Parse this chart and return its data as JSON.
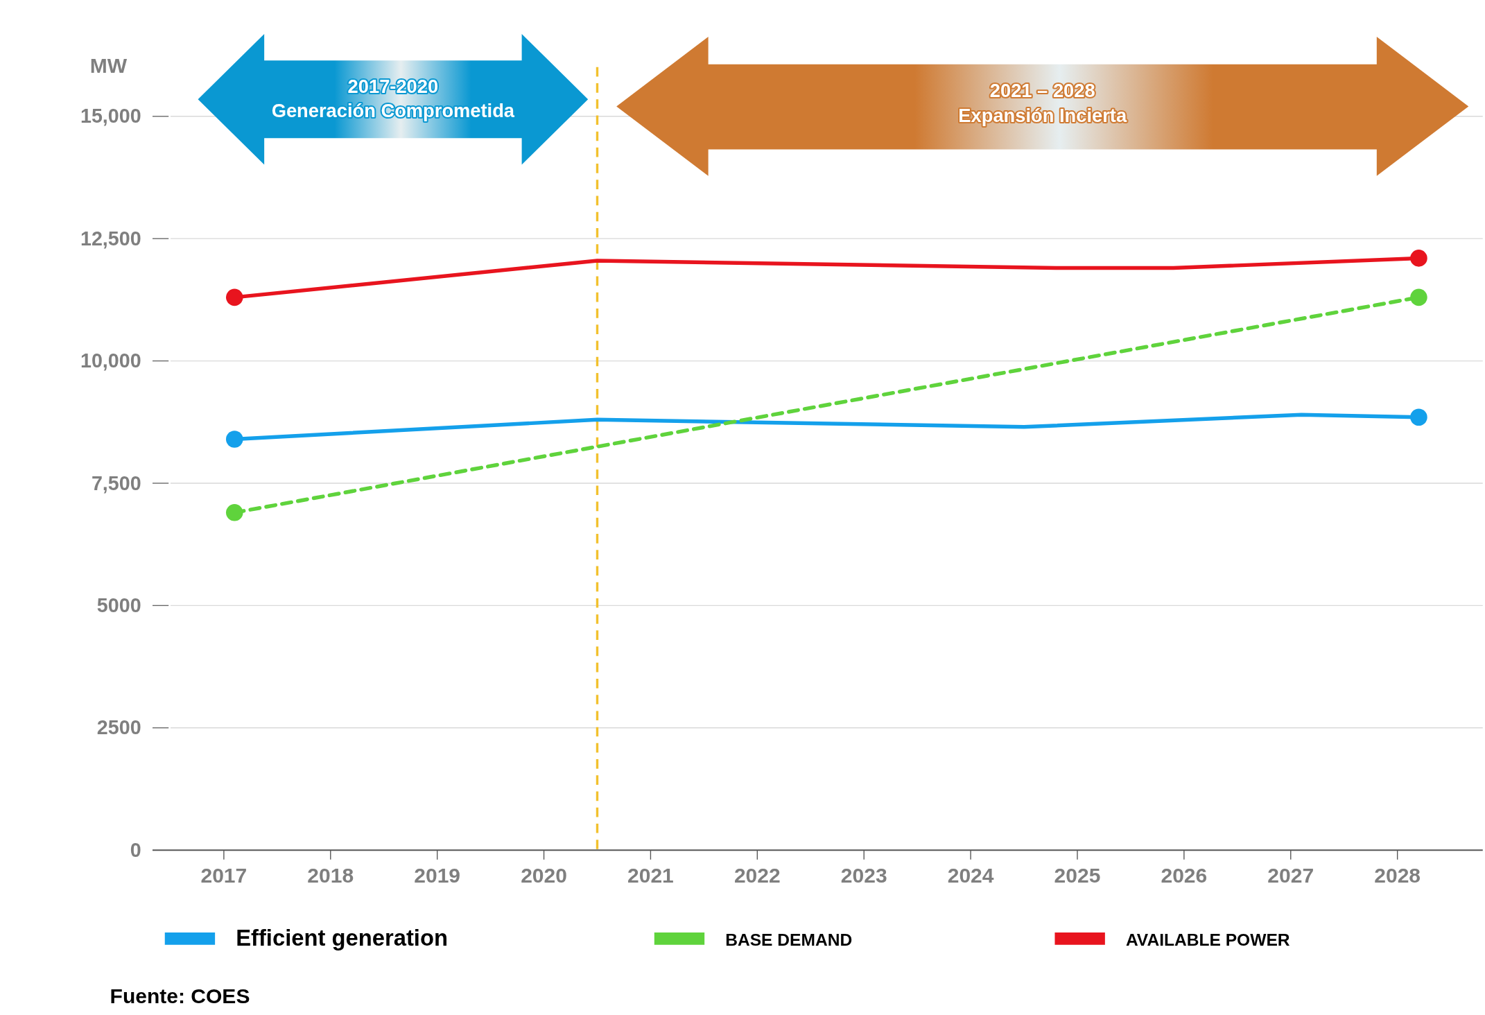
{
  "chart_data": {
    "type": "line",
    "ylabel": "MW",
    "xlim": [
      2016.5,
      2028.8
    ],
    "ylim": [
      0,
      15000
    ],
    "xticks": [
      2017,
      2018,
      2019,
      2020,
      2021,
      2022,
      2023,
      2024,
      2025,
      2026,
      2027,
      2028
    ],
    "yticks": [
      0,
      2500,
      5000,
      {
        "value": 7500,
        "label": "7,500"
      },
      {
        "value": 10000,
        "label": "10,000"
      },
      {
        "value": 12500,
        "label": "12,500"
      },
      {
        "value": 15000,
        "label": "15,000"
      }
    ],
    "grid": "y",
    "legend": "bottom",
    "series": [
      {
        "name": "Efficient generation",
        "color": "#14a0eb",
        "x": [
          2017.1,
          2020.5,
          2024.5,
          2027.1,
          2028.2
        ],
        "values": [
          8400,
          8800,
          8650,
          8900,
          8850
        ]
      },
      {
        "name": "BASE DEMAND",
        "color": "#5fd33c",
        "line_style": "dashed",
        "x": [
          2017.1,
          2028.2
        ],
        "values": [
          6900,
          11300
        ]
      },
      {
        "name": "AVAILABLE POWER",
        "color": "#e8141e",
        "x": [
          2017.1,
          2020.5,
          2024.8,
          2025.9,
          2028.2
        ],
        "values": [
          11300,
          12050,
          11900,
          11900,
          12100
        ]
      },
      {
        "type": "scatter",
        "color": "#14a0eb",
        "x": [
          2017.1,
          2028.2
        ],
        "values": [
          8400,
          8850
        ]
      },
      {
        "type": "scatter",
        "color": "#5fd33c",
        "x": [
          2017.1,
          2028.2
        ],
        "values": [
          6900,
          11300
        ]
      },
      {
        "type": "scatter",
        "color": "#e8141e",
        "x": [
          2017.1,
          2028.2
        ],
        "values": [
          11300,
          12100
        ]
      }
    ],
    "ref_lines": [
      {
        "axis": "x",
        "value": 2020.5,
        "color": "#f2c12e",
        "line_style": "dashed"
      }
    ],
    "annotations": [
      "2017-2020\nGeneración Comprometida",
      "2021 – 2028\nExpansión Incierta",
      "Fuente: COES"
    ]
  }
}
